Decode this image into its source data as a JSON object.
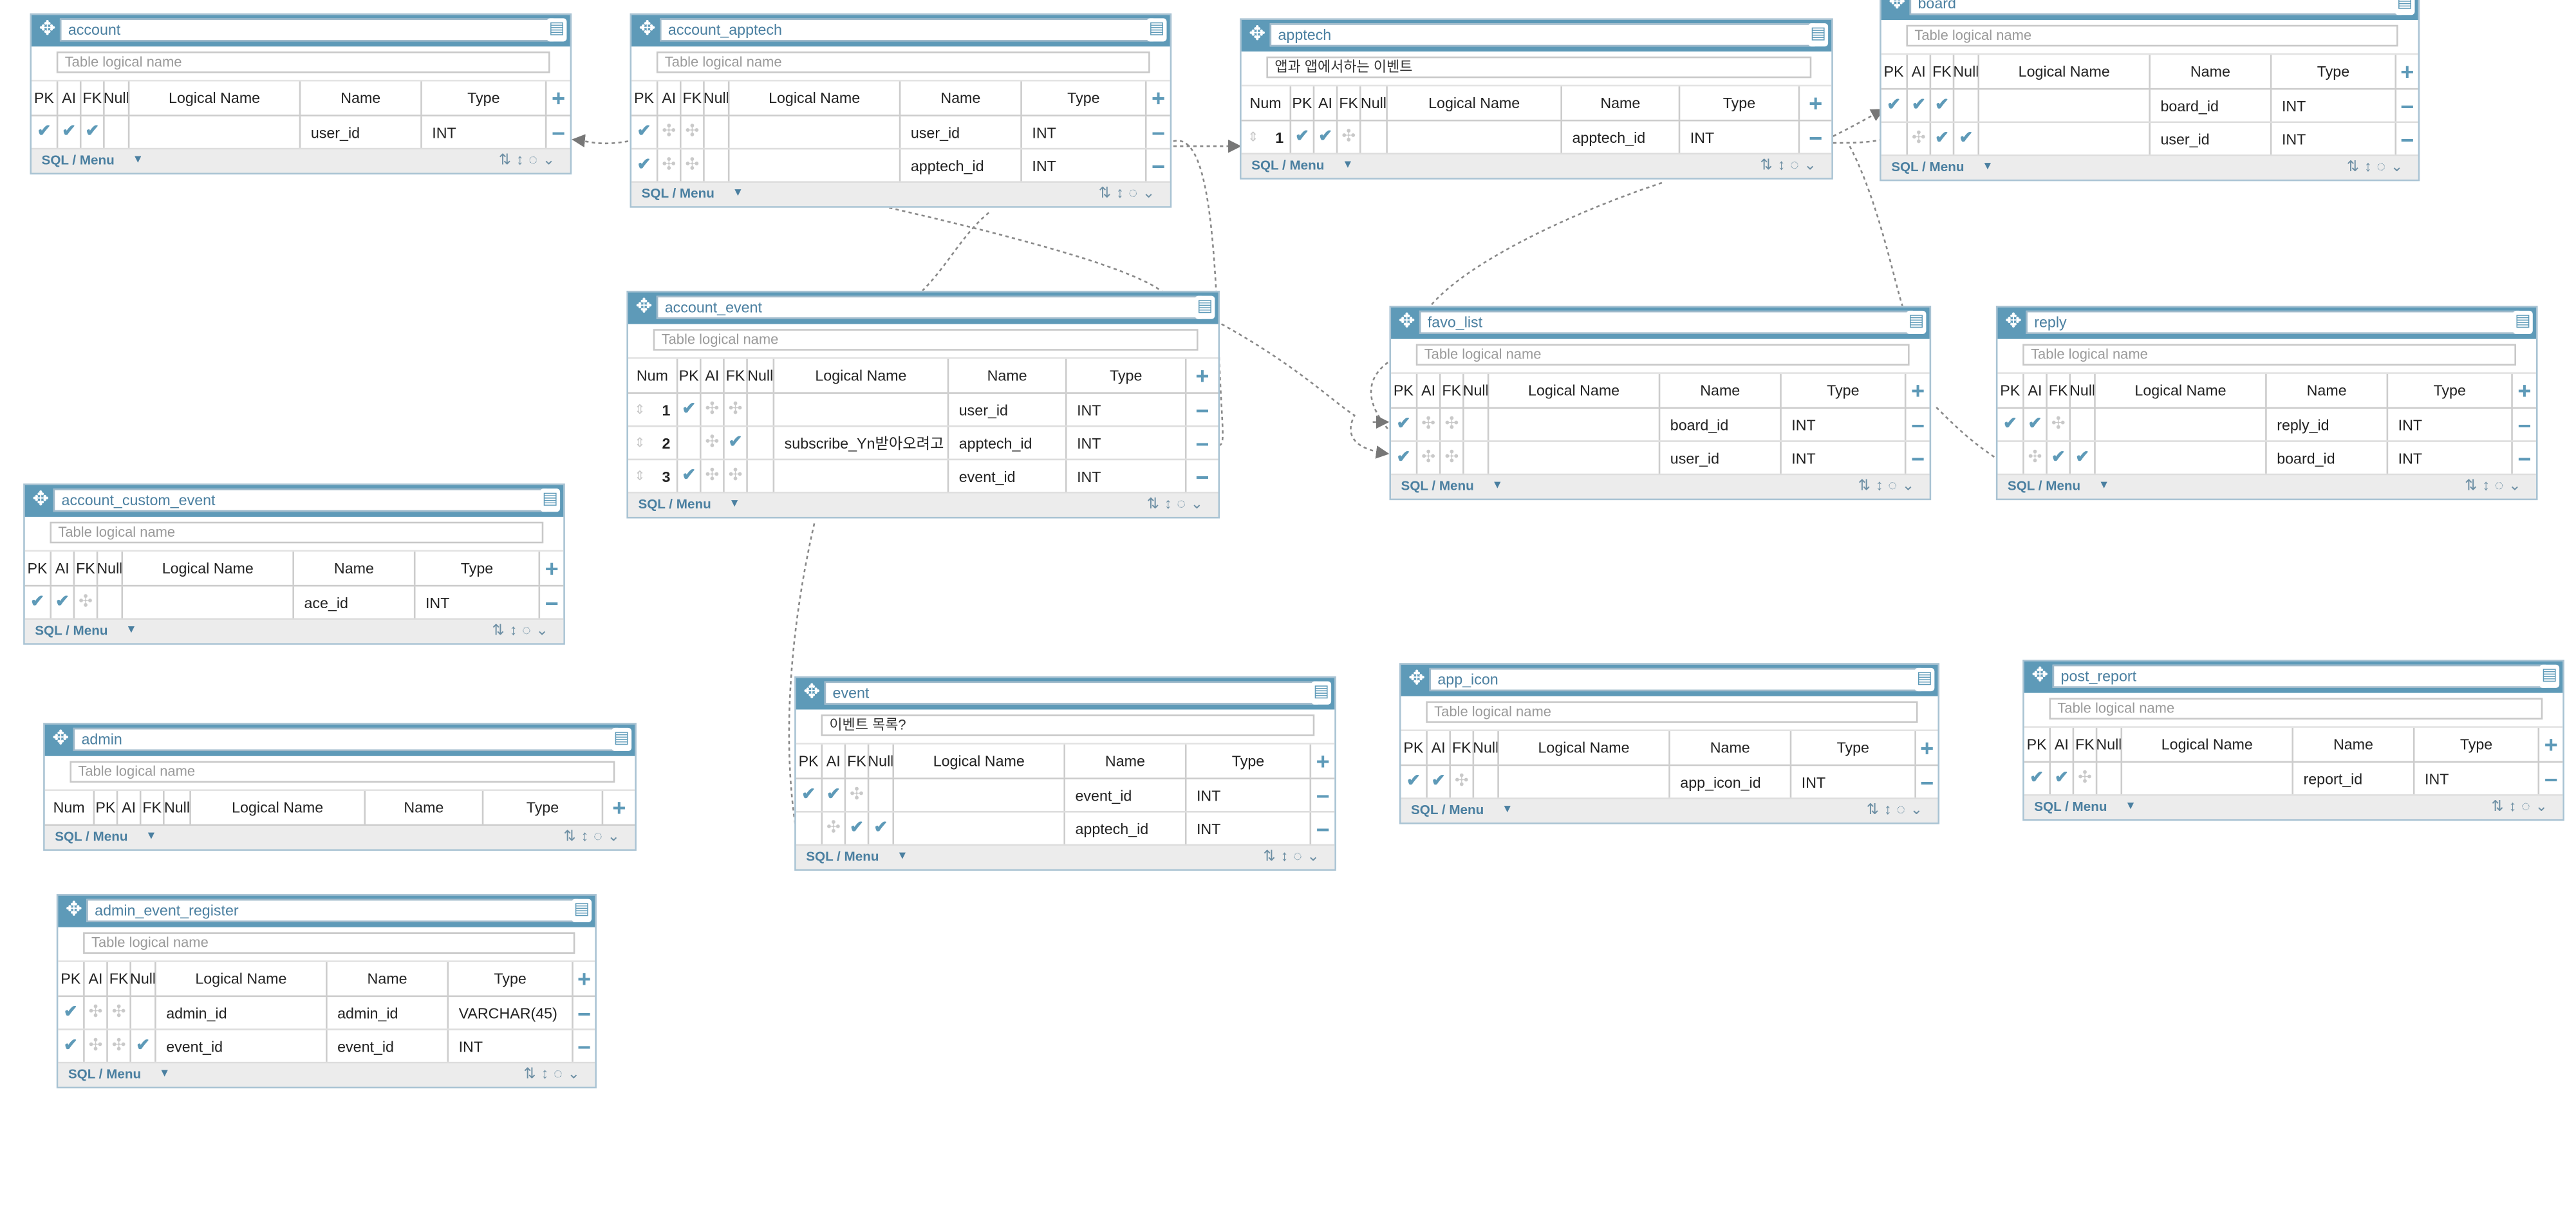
{
  "ui": {
    "placeholder": "Table logical name",
    "menu_label": "SQL / Menu",
    "move_icon": "move-icon",
    "delete_icon": "trash-icon",
    "accent": "#5e9ab8"
  },
  "tables": [
    {
      "name": "account",
      "logical": "",
      "num": false,
      "rows": [
        {
          "pk": true,
          "ai": true,
          "fk": true,
          "nul": false,
          "logical": "",
          "field": "user_id",
          "type": "INT"
        }
      ]
    },
    {
      "name": "account_apptech",
      "logical": "",
      "num": false,
      "rows": [
        {
          "pk": true,
          "ai": false,
          "fk": false,
          "nul": false,
          "logical": "",
          "field": "user_id",
          "type": "INT"
        },
        {
          "pk": true,
          "ai": false,
          "fk": false,
          "nul": false,
          "logical": "",
          "field": "apptech_id",
          "type": "INT"
        }
      ]
    },
    {
      "name": "apptech",
      "logical": "앱과 앱에서하는 이벤트",
      "num": true,
      "rows": [
        {
          "num": "1",
          "pk": true,
          "ai": true,
          "fk": false,
          "nul": false,
          "logical": "",
          "field": "apptech_id",
          "type": "INT"
        }
      ]
    },
    {
      "name": "board",
      "logical": "",
      "num": false,
      "rows": [
        {
          "pk": true,
          "ai": true,
          "fk": true,
          "nul": false,
          "logical": "",
          "field": "board_id",
          "type": "INT"
        },
        {
          "pk": false,
          "ai": false,
          "fk": true,
          "nul": true,
          "logical": "",
          "field": "user_id",
          "type": "INT"
        }
      ]
    },
    {
      "name": "account_event",
      "logical": "",
      "num": true,
      "rows": [
        {
          "num": "1",
          "pk": true,
          "ai": false,
          "fk": false,
          "nul": false,
          "logical": "",
          "field": "user_id",
          "type": "INT"
        },
        {
          "num": "2",
          "pk": false,
          "ai": false,
          "fk": true,
          "nul": false,
          "logical": "subscribe_Yn받아오려고",
          "field": "apptech_id",
          "type": "INT"
        },
        {
          "num": "3",
          "pk": true,
          "ai": false,
          "fk": false,
          "nul": false,
          "logical": "",
          "field": "event_id",
          "type": "INT"
        }
      ]
    },
    {
      "name": "favo_list",
      "logical": "",
      "num": false,
      "rows": [
        {
          "pk": true,
          "ai": false,
          "fk": false,
          "nul": false,
          "logical": "",
          "field": "board_id",
          "type": "INT"
        },
        {
          "pk": true,
          "ai": false,
          "fk": false,
          "nul": false,
          "logical": "",
          "field": "user_id",
          "type": "INT"
        }
      ]
    },
    {
      "name": "reply",
      "logical": "",
      "num": false,
      "rows": [
        {
          "pk": true,
          "ai": true,
          "fk": false,
          "nul": false,
          "logical": "",
          "field": "reply_id",
          "type": "INT"
        },
        {
          "pk": false,
          "ai": false,
          "fk": true,
          "nul": true,
          "logical": "",
          "field": "board_id",
          "type": "INT"
        }
      ]
    },
    {
      "name": "account_custom_event",
      "logical": "",
      "num": false,
      "rows": [
        {
          "pk": true,
          "ai": true,
          "fk": false,
          "nul": false,
          "logical": "",
          "field": "ace_id",
          "type": "INT"
        }
      ]
    },
    {
      "name": "event",
      "logical": "이벤트 목록?",
      "num": false,
      "rows": [
        {
          "pk": true,
          "ai": true,
          "fk": false,
          "nul": false,
          "logical": "",
          "field": "event_id",
          "type": "INT"
        },
        {
          "pk": false,
          "ai": false,
          "fk": true,
          "nul": true,
          "logical": "",
          "field": "apptech_id",
          "type": "INT"
        }
      ]
    },
    {
      "name": "app_icon",
      "logical": "",
      "num": false,
      "rows": [
        {
          "pk": true,
          "ai": true,
          "fk": false,
          "nul": false,
          "logical": "",
          "field": "app_icon_id",
          "type": "INT"
        }
      ]
    },
    {
      "name": "post_report",
      "logical": "",
      "num": false,
      "rows": [
        {
          "pk": true,
          "ai": true,
          "fk": false,
          "nul": false,
          "logical": "",
          "field": "report_id",
          "type": "INT"
        }
      ]
    },
    {
      "name": "admin",
      "logical": "",
      "num": true,
      "rows": []
    },
    {
      "name": "admin_event_register",
      "logical": "",
      "num": false,
      "rows": [
        {
          "pk": true,
          "ai": false,
          "fk": false,
          "nul": false,
          "logical": "admin_id",
          "field": "admin_id",
          "type": "VARCHAR(45)"
        },
        {
          "pk": true,
          "ai": false,
          "fk": false,
          "nul": true,
          "logical": "event_id",
          "field": "event_id",
          "type": "INT"
        }
      ]
    }
  ],
  "headers": {
    "num": "Num",
    "pk": "PK",
    "ai": "AI",
    "fk": "FK",
    "nul": "Null",
    "logical": "Logical Name",
    "name": "Name",
    "type": "Type"
  }
}
